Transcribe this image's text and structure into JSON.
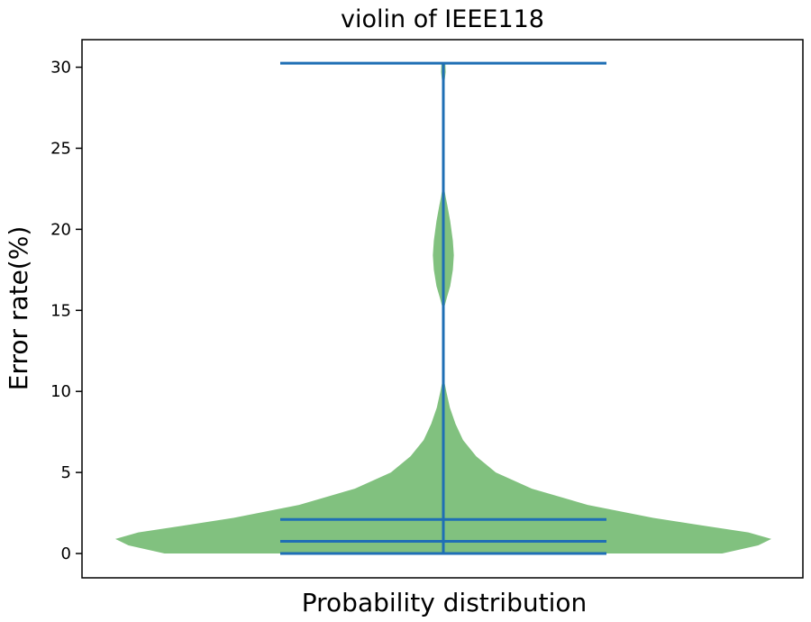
{
  "chart_data": {
    "type": "violin",
    "title": "violin of IEEE118",
    "xlabel": "Probability distribution",
    "ylabel": "Error rate(%)",
    "ylim": [
      -1.5,
      31.7
    ],
    "yticks": [
      0,
      5,
      10,
      15,
      20,
      25,
      30
    ],
    "ytick_labels": [
      "0",
      "5",
      "10",
      "15",
      "20",
      "25",
      "30"
    ],
    "xticks": [],
    "grid": false,
    "violin_color": "#81c17f",
    "line_color": "#1f6fb5",
    "frame_color": "#000000",
    "statistics": {
      "min": 0.0,
      "max": 30.25,
      "median": 0.75,
      "mean": 2.1
    },
    "density_profile": [
      {
        "y": 0.0,
        "width": 0.85
      },
      {
        "y": 0.5,
        "width": 0.96
      },
      {
        "y": 0.9,
        "width": 1.0
      },
      {
        "y": 1.3,
        "width": 0.93
      },
      {
        "y": 1.7,
        "width": 0.8
      },
      {
        "y": 2.2,
        "width": 0.64
      },
      {
        "y": 3.0,
        "width": 0.44
      },
      {
        "y": 4.0,
        "width": 0.27
      },
      {
        "y": 5.0,
        "width": 0.16
      },
      {
        "y": 6.0,
        "width": 0.1
      },
      {
        "y": 7.0,
        "width": 0.06
      },
      {
        "y": 8.0,
        "width": 0.037
      },
      {
        "y": 9.0,
        "width": 0.02
      },
      {
        "y": 10.0,
        "width": 0.009
      },
      {
        "y": 10.6,
        "width": 0.003
      },
      {
        "y": 11.0,
        "width": 0.0
      },
      {
        "y": 14.8,
        "width": 0.0
      },
      {
        "y": 15.2,
        "width": 0.003
      },
      {
        "y": 15.8,
        "width": 0.011
      },
      {
        "y": 16.5,
        "width": 0.021
      },
      {
        "y": 17.5,
        "width": 0.029
      },
      {
        "y": 18.4,
        "width": 0.032
      },
      {
        "y": 19.3,
        "width": 0.029
      },
      {
        "y": 20.5,
        "width": 0.021
      },
      {
        "y": 21.5,
        "width": 0.012
      },
      {
        "y": 22.0,
        "width": 0.007
      },
      {
        "y": 22.6,
        "width": 0.002
      },
      {
        "y": 23.0,
        "width": 0.0
      },
      {
        "y": 28.4,
        "width": 0.0
      },
      {
        "y": 29.0,
        "width": 0.003
      },
      {
        "y": 29.7,
        "width": 0.007
      },
      {
        "y": 30.25,
        "width": 0.006
      }
    ]
  }
}
